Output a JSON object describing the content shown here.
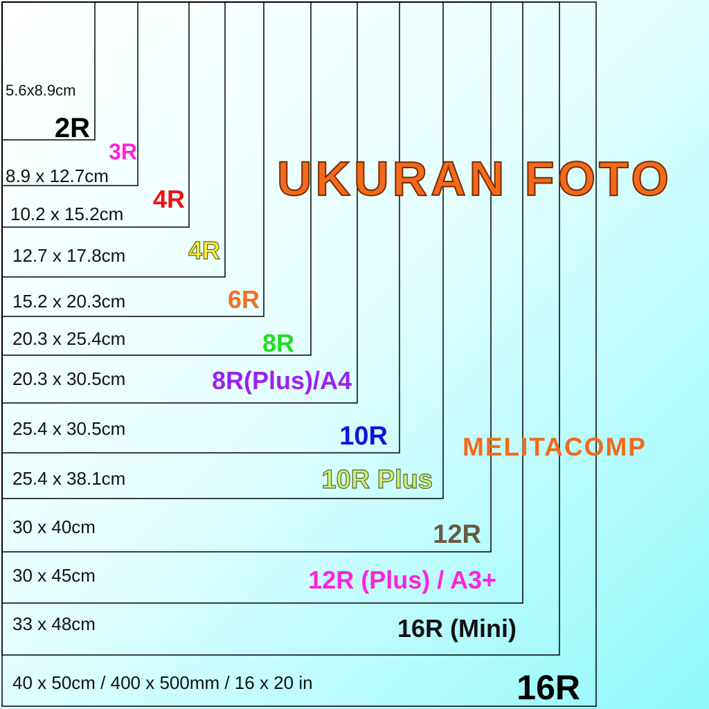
{
  "title": "UKURAN FOTO",
  "brand": "MELITACOMP",
  "sizes": [
    {
      "dimension": "5.6x8.9cm",
      "name": "2R",
      "color": "#000000"
    },
    {
      "dimension": "8.9 x 12.7cm",
      "name": "3R",
      "color": "#ff22dd"
    },
    {
      "dimension": "10.2 x 15.2cm",
      "name": "4R",
      "color": "#ee1111"
    },
    {
      "dimension": "12.7 x 17.8cm",
      "name": "4R",
      "color": "#ffee33"
    },
    {
      "dimension": "15.2 x 20.3cm",
      "name": "6R",
      "color": "#f07020"
    },
    {
      "dimension": "20.3 x 25.4cm",
      "name": "8R",
      "color": "#22dd22"
    },
    {
      "dimension": "20.3 x 30.5cm",
      "name": "8R(Plus)/A4",
      "color": "#9922ee"
    },
    {
      "dimension": "25.4 x 30.5cm",
      "name": "10R",
      "color": "#1111dd"
    },
    {
      "dimension": "25.4 x 38.1cm",
      "name": "10R Plus",
      "color": "#ccee77"
    },
    {
      "dimension": "30 x 40cm",
      "name": "12R",
      "color": "#6b5a40"
    },
    {
      "dimension": "30 x 45cm",
      "name": "12R (Plus) / A3+",
      "color": "#ff22dd"
    },
    {
      "dimension": "33 x 48cm",
      "name": "16R (Mini)",
      "color": "#111111"
    },
    {
      "dimension": "40 x 50cm / 400 x 500mm / 16 x 20 in",
      "name": "16R",
      "color": "#000000"
    }
  ]
}
